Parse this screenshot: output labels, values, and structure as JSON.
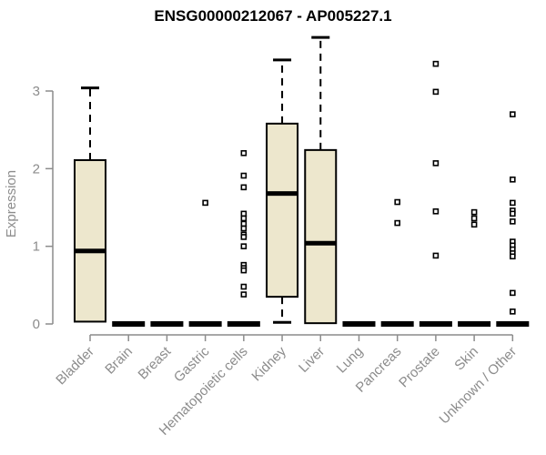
{
  "colors": {
    "background": "#FFFFFF",
    "title": "#000000",
    "axis": "#8C8C8C",
    "axis_text": "#8C8C8C",
    "box_fill": "#EDE7CD",
    "box_stroke": "#000000",
    "median": "#000000",
    "whisker": "#000000",
    "outlier_stroke": "#000000",
    "outlier_fill": "#FFFFFF"
  },
  "chart_data": {
    "type": "boxplot",
    "title": "ENSG00000212067 - AP005227.1",
    "ylabel": "Expression",
    "xlabel": "",
    "ylim": [
      0,
      3.75
    ],
    "yticks": [
      0,
      1,
      2,
      3
    ],
    "grid": false,
    "legend": "none",
    "categories": [
      "Bladder",
      "Brain",
      "Breast",
      "Gastric",
      "Hematopoietic cells",
      "Kidney",
      "Liver",
      "Lung",
      "Pancreas",
      "Prostate",
      "Skin",
      "Unknown / Other"
    ],
    "series": [
      {
        "name": "Bladder",
        "q1": 0.03,
        "median": 0.94,
        "q3": 2.11,
        "whisker_low": null,
        "whisker_high": 3.04,
        "outliers": []
      },
      {
        "name": "Brain",
        "q1": 0,
        "median": 0,
        "q3": 0,
        "whisker_low": null,
        "whisker_high": null,
        "outliers": []
      },
      {
        "name": "Breast",
        "q1": 0,
        "median": 0,
        "q3": 0,
        "whisker_low": null,
        "whisker_high": null,
        "outliers": []
      },
      {
        "name": "Gastric",
        "q1": 0,
        "median": 0,
        "q3": 0,
        "whisker_low": null,
        "whisker_high": null,
        "outliers": [
          1.56
        ]
      },
      {
        "name": "Hematopoietic cells",
        "q1": 0,
        "median": 0,
        "q3": 0,
        "whisker_low": null,
        "whisker_high": null,
        "outliers": [
          2.2,
          1.91,
          1.76,
          1.42,
          1.36,
          1.29,
          1.23,
          1.15,
          1.12,
          1.0,
          0.76,
          0.72,
          0.69,
          0.48,
          0.38
        ]
      },
      {
        "name": "Kidney",
        "q1": 0.35,
        "median": 1.68,
        "q3": 2.58,
        "whisker_low": 0.02,
        "whisker_high": 3.4,
        "outliers": []
      },
      {
        "name": "Liver",
        "q1": 0.01,
        "median": 1.04,
        "q3": 2.24,
        "whisker_low": null,
        "whisker_high": 3.69,
        "outliers": []
      },
      {
        "name": "Lung",
        "q1": 0,
        "median": 0,
        "q3": 0,
        "whisker_low": null,
        "whisker_high": null,
        "outliers": []
      },
      {
        "name": "Pancreas",
        "q1": 0,
        "median": 0,
        "q3": 0,
        "whisker_low": null,
        "whisker_high": null,
        "outliers": [
          1.57,
          1.3
        ]
      },
      {
        "name": "Prostate",
        "q1": 0,
        "median": 0,
        "q3": 0,
        "whisker_low": null,
        "whisker_high": null,
        "outliers": [
          3.35,
          2.99,
          2.07,
          1.45,
          0.88
        ]
      },
      {
        "name": "Skin",
        "q1": 0,
        "median": 0,
        "q3": 0,
        "whisker_low": null,
        "whisker_high": null,
        "outliers": [
          1.44,
          1.36,
          1.28
        ]
      },
      {
        "name": "Unknown / Other",
        "q1": 0,
        "median": 0,
        "q3": 0,
        "whisker_low": null,
        "whisker_high": null,
        "outliers": [
          2.7,
          1.86,
          1.56,
          1.46,
          1.42,
          1.32,
          1.06,
          1.01,
          0.96,
          0.91,
          0.87,
          0.4,
          0.16
        ]
      }
    ]
  }
}
